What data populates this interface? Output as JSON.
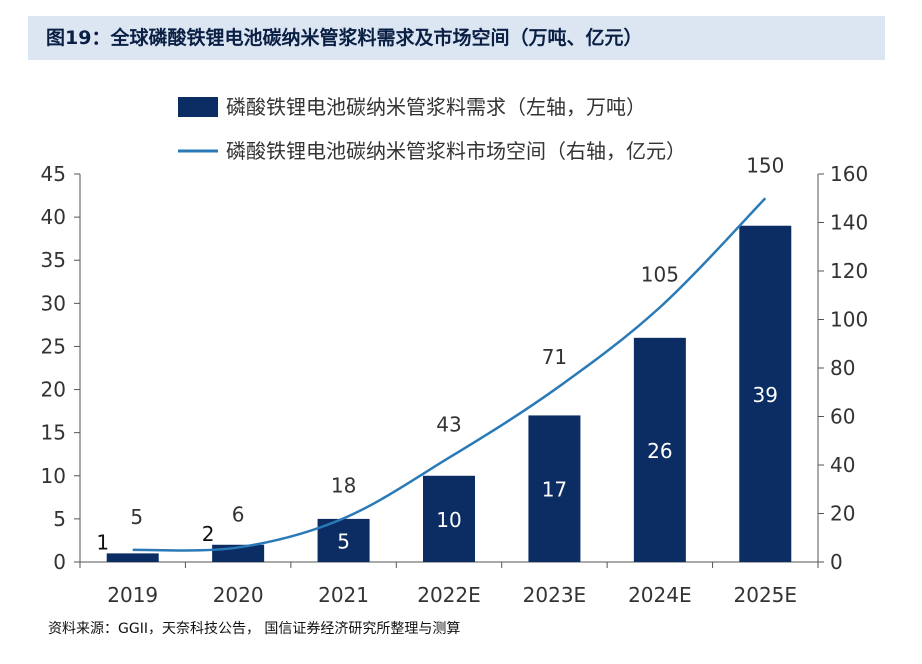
{
  "header": {
    "title": "图19：全球磷酸铁锂电池碳纳米管浆料需求及市场空间（万吨、亿元）"
  },
  "footer": {
    "source": "资料来源：GGII，天奈科技公告， 国信证券经济研究所整理与测算"
  },
  "chart_data": {
    "type": "bar+line",
    "categories": [
      "2019",
      "2020",
      "2021",
      "2022E",
      "2023E",
      "2024E",
      "2025E"
    ],
    "series": [
      {
        "name": "磷酸铁锂电池碳纳米管浆料需求（左轴，万吨）",
        "type": "bar",
        "axis": "left",
        "values": [
          1,
          2,
          5,
          10,
          17,
          26,
          39
        ],
        "color": "#0b2d63",
        "labels": [
          "1",
          "2",
          "5",
          "10",
          "17",
          "26",
          "39"
        ]
      },
      {
        "name": "磷酸铁锂电池碳纳米管浆料市场空间（右轴，亿元）",
        "type": "line",
        "axis": "right",
        "values": [
          5,
          6,
          18,
          43,
          71,
          105,
          150
        ],
        "color": "#2a7ab8",
        "labels": [
          "5",
          "6",
          "18",
          "43",
          "71",
          "105",
          "150"
        ]
      }
    ],
    "y_left": {
      "min": 0,
      "max": 45,
      "step": 5,
      "ticks": [
        "0",
        "5",
        "10",
        "15",
        "20",
        "25",
        "30",
        "35",
        "40",
        "45"
      ]
    },
    "y_right": {
      "min": 0,
      "max": 160,
      "step": 20,
      "ticks": [
        "0",
        "20",
        "40",
        "60",
        "80",
        "100",
        "120",
        "140",
        "160"
      ]
    },
    "grid": false,
    "legend_position": "top"
  }
}
